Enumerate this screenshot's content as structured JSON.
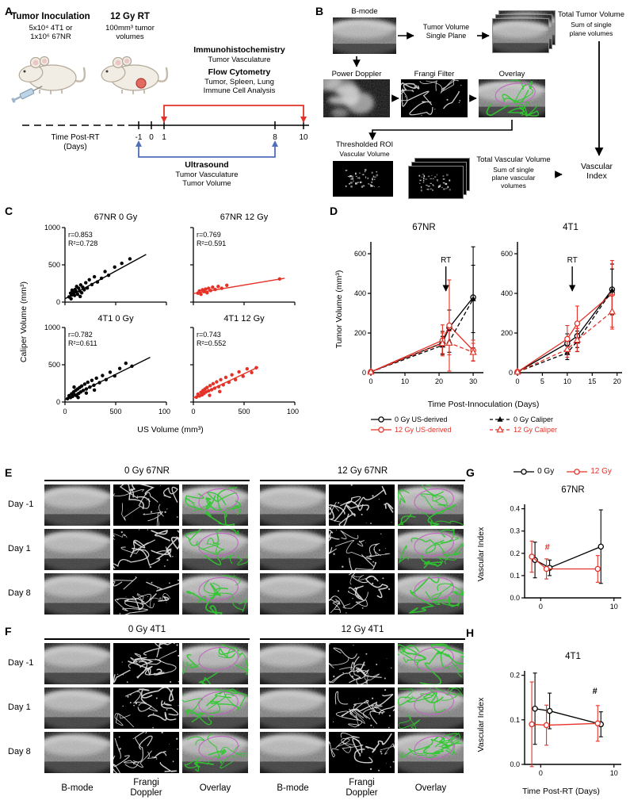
{
  "colors": {
    "red": "#e53228",
    "blue": "#4f6fb8",
    "green": "#2ec92e",
    "magenta": "#c45fc4",
    "black": "#000000"
  },
  "panel_labels": {
    "a": "A",
    "b": "B",
    "c": "C",
    "d": "D",
    "e": "E",
    "f": "F",
    "g": "G",
    "h": "H"
  },
  "panel_a": {
    "inoculation_title": "Tumor Inoculation",
    "inoculation_sub1": "5x10⁴ 4T1 or",
    "inoculation_sub2": "1x10⁶ 67NR",
    "rt_title": "12 Gy RT",
    "rt_sub1": "100mm³ tumor",
    "rt_sub2": "volumes",
    "ihc_title": "Immunohistochemistry",
    "ihc_sub": "Tumor Vasculature",
    "flow_title": "Flow Cytometry",
    "flow_sub1": "Tumor, Spleen, Lung",
    "flow_sub2": "Immune Cell Analysis",
    "time_label1": "Time Post-RT",
    "time_label2": "(Days)",
    "ticks": [
      "-1",
      "0",
      "1",
      "8",
      "10"
    ],
    "us_title": "Ultrasound",
    "us_sub1": "Tumor Vasculature",
    "us_sub2": "Tumor Volume"
  },
  "panel_b": {
    "bmode": "B-mode",
    "tv1": "Tumor Volume",
    "tv2": "Single Plane",
    "total_tumor1": "Total Tumor Volume",
    "total_tumor2": "Sum of single",
    "total_tumor3": "plane volumes",
    "power_doppler": "Power Doppler",
    "frangi": "Frangi Filter",
    "overlay": "Overlay",
    "thresh1": "Thresholded ROI",
    "thresh2": "Vascular Volume",
    "total_vasc1": "Total Vascular Volume",
    "total_vasc2": "Sum of single",
    "total_vasc3": "plane vascular",
    "total_vasc4": "volumes",
    "vi1": "Vascular",
    "vi2": "Index"
  },
  "panel_c": {
    "xlabel": "US Volume (mm³)",
    "ylabel": "Caliper Volume (mm³)"
  },
  "panel_d": {
    "ylabel": "Tumor Volume (mm³)",
    "xlabel": "Time Post-Innoculation (Days)"
  },
  "panel_e": {
    "group1": "0 Gy 67NR",
    "group2": "12 Gy 67NR",
    "rows": [
      "Day -1",
      "Day 1",
      "Day 8"
    ]
  },
  "panel_f": {
    "group1": "0 Gy 4T1",
    "group2": "12 Gy 4T1",
    "rows": [
      "Day -1",
      "Day 1",
      "Day 8"
    ],
    "cols": [
      {
        "l1": "B-mode",
        "l2": ""
      },
      {
        "l1": "Frangi",
        "l2": "Doppler"
      },
      {
        "l1": "Overlay",
        "l2": ""
      },
      {
        "l1": "B-mode",
        "l2": ""
      },
      {
        "l1": "Frangi",
        "l2": "Doppler"
      },
      {
        "l1": "Overlay",
        "l2": ""
      }
    ]
  },
  "panel_g": {
    "ylabel": "Vascular Index"
  },
  "panel_h": {
    "ylabel": "Vascular Index",
    "xlabel": "Time Post-RT (Days)"
  },
  "chart_data": [
    {
      "id": "c_67nr_0gy",
      "type": "scatter",
      "title": "67NR 0 Gy",
      "color": "#000000",
      "r_label": "r=0.853",
      "r2_label": "R²=0.728",
      "xlim": [
        0,
        1000
      ],
      "ylim": [
        0,
        1000
      ],
      "xticks": [
        0,
        500,
        1000
      ],
      "yticks": [
        0,
        500,
        1000
      ],
      "show_xlabels": false,
      "show_ylabels": true,
      "points": [
        [
          40,
          70
        ],
        [
          55,
          120
        ],
        [
          65,
          95
        ],
        [
          70,
          160
        ],
        [
          85,
          130
        ],
        [
          95,
          90
        ],
        [
          100,
          170
        ],
        [
          110,
          140
        ],
        [
          115,
          210
        ],
        [
          125,
          105
        ],
        [
          135,
          185
        ],
        [
          145,
          150
        ],
        [
          155,
          230
        ],
        [
          165,
          125
        ],
        [
          175,
          200
        ],
        [
          190,
          165
        ],
        [
          205,
          260
        ],
        [
          220,
          190
        ],
        [
          240,
          300
        ],
        [
          265,
          235
        ],
        [
          290,
          340
        ],
        [
          320,
          270
        ],
        [
          360,
          320
        ],
        [
          395,
          410
        ],
        [
          430,
          360
        ],
        [
          490,
          470
        ],
        [
          560,
          520
        ],
        [
          640,
          580
        ],
        [
          60,
          45
        ],
        [
          150,
          75
        ]
      ],
      "fit": [
        [
          0,
          45
        ],
        [
          800,
          640
        ]
      ]
    },
    {
      "id": "c_67nr_12gy",
      "type": "scatter",
      "title": "67NR 12 Gy",
      "color": "#e53228",
      "r_label": "r=0.769",
      "r2_label": "R²=0.591",
      "xlim": [
        0,
        1000
      ],
      "ylim": [
        0,
        1000
      ],
      "xticks": [
        0,
        500,
        1000
      ],
      "yticks": [
        0,
        500,
        1000
      ],
      "show_xlabels": false,
      "show_ylabels": false,
      "points": [
        [
          45,
          120
        ],
        [
          60,
          150
        ],
        [
          75,
          105
        ],
        [
          90,
          165
        ],
        [
          105,
          140
        ],
        [
          120,
          175
        ],
        [
          135,
          125
        ],
        [
          150,
          185
        ],
        [
          170,
          155
        ],
        [
          190,
          200
        ],
        [
          215,
          170
        ],
        [
          245,
          210
        ],
        [
          280,
          185
        ],
        [
          330,
          225
        ],
        [
          850,
          310
        ]
      ],
      "fit": [
        [
          0,
          115
        ],
        [
          900,
          320
        ]
      ]
    },
    {
      "id": "c_4t1_0gy",
      "type": "scatter",
      "title": "4T1 0 Gy",
      "color": "#000000",
      "r_label": "r=0.782",
      "r2_label": "R²=0.611",
      "xlim": [
        0,
        1000
      ],
      "ylim": [
        0,
        1000
      ],
      "xticks": [
        0,
        500,
        1000
      ],
      "yticks": [
        0,
        500,
        1000
      ],
      "show_xlabels": true,
      "show_ylabels": true,
      "points": [
        [
          25,
          45
        ],
        [
          40,
          85
        ],
        [
          55,
          60
        ],
        [
          65,
          110
        ],
        [
          75,
          75
        ],
        [
          85,
          135
        ],
        [
          95,
          95
        ],
        [
          105,
          155
        ],
        [
          115,
          85
        ],
        [
          125,
          175
        ],
        [
          135,
          115
        ],
        [
          145,
          195
        ],
        [
          155,
          135
        ],
        [
          165,
          215
        ],
        [
          180,
          155
        ],
        [
          195,
          240
        ],
        [
          210,
          175
        ],
        [
          225,
          265
        ],
        [
          245,
          200
        ],
        [
          265,
          290
        ],
        [
          285,
          225
        ],
        [
          310,
          320
        ],
        [
          340,
          260
        ],
        [
          370,
          355
        ],
        [
          405,
          300
        ],
        [
          445,
          400
        ],
        [
          490,
          350
        ],
        [
          540,
          450
        ],
        [
          600,
          520
        ],
        [
          660,
          480
        ],
        [
          130,
          60
        ],
        [
          210,
          120
        ],
        [
          290,
          160
        ],
        [
          90,
          200
        ]
      ],
      "fit": [
        [
          0,
          35
        ],
        [
          840,
          600
        ]
      ]
    },
    {
      "id": "c_4t1_12gy",
      "type": "scatter",
      "title": "4T1 12 Gy",
      "color": "#e53228",
      "r_label": "r=0.743",
      "r2_label": "R²=0.552",
      "xlim": [
        0,
        1000
      ],
      "ylim": [
        0,
        1000
      ],
      "xticks": [
        0,
        500,
        1000
      ],
      "yticks": [
        0,
        500,
        1000
      ],
      "show_xlabels": true,
      "show_ylabels": false,
      "points": [
        [
          30,
          65
        ],
        [
          45,
          105
        ],
        [
          60,
          80
        ],
        [
          75,
          130
        ],
        [
          85,
          95
        ],
        [
          95,
          155
        ],
        [
          105,
          115
        ],
        [
          115,
          175
        ],
        [
          125,
          135
        ],
        [
          135,
          195
        ],
        [
          150,
          150
        ],
        [
          165,
          220
        ],
        [
          180,
          165
        ],
        [
          195,
          245
        ],
        [
          210,
          185
        ],
        [
          230,
          270
        ],
        [
          250,
          205
        ],
        [
          270,
          300
        ],
        [
          295,
          230
        ],
        [
          320,
          330
        ],
        [
          350,
          265
        ],
        [
          380,
          365
        ],
        [
          415,
          300
        ],
        [
          450,
          405
        ],
        [
          490,
          345
        ],
        [
          530,
          445
        ],
        [
          575,
          395
        ],
        [
          620,
          460
        ],
        [
          160,
          90
        ],
        [
          260,
          140
        ]
      ],
      "fit": [
        [
          0,
          55
        ],
        [
          640,
          470
        ]
      ]
    },
    {
      "id": "d_67nr",
      "type": "line",
      "title": "67NR",
      "xlim": [
        0,
        33
      ],
      "ylim": [
        0,
        660
      ],
      "xticks": [
        0,
        10,
        20,
        30
      ],
      "yticks": [
        0,
        200,
        400,
        600
      ],
      "rt": {
        "x": 22,
        "label": "RT"
      },
      "series": [
        {
          "name": "0 Gy US-derived",
          "color": "#000000",
          "dash": false,
          "marker": "co",
          "x": [
            0,
            21,
            23,
            30
          ],
          "y": [
            4,
            150,
            228,
            380
          ],
          "err": [
            2,
            58,
            88,
            255
          ]
        },
        {
          "name": "12 Gy US-derived",
          "color": "#e53228",
          "dash": false,
          "marker": "co",
          "x": [
            0,
            21,
            23,
            30
          ],
          "y": [
            4,
            163,
            238,
            112
          ],
          "err": [
            2,
            78,
            230,
            52
          ]
        },
        {
          "name": "0 Gy Caliper",
          "color": "#000000",
          "dash": true,
          "marker": "t",
          "x": [
            0,
            21,
            23,
            30
          ],
          "y": [
            4,
            138,
            158,
            372
          ],
          "err": [
            2,
            45,
            55,
            170
          ]
        },
        {
          "name": "12 Gy Caliper",
          "color": "#e53228",
          "dash": true,
          "marker": "to",
          "x": [
            0,
            21,
            23,
            30
          ],
          "y": [
            4,
            148,
            150,
            103
          ],
          "err": [
            2,
            52,
            60,
            45
          ]
        }
      ],
      "legend_order": [
        0,
        2,
        1,
        3
      ]
    },
    {
      "id": "d_4t1",
      "type": "line",
      "title": "4T1",
      "xlim": [
        0,
        21
      ],
      "ylim": [
        0,
        660
      ],
      "xticks": [
        0,
        5,
        10,
        15,
        20
      ],
      "yticks": [
        0,
        200,
        400,
        600
      ],
      "rt": {
        "x": 11,
        "label": "RT"
      },
      "series": [
        {
          "name": "0 Gy US-derived",
          "color": "#000000",
          "dash": false,
          "marker": "co",
          "x": [
            0,
            10,
            12,
            19
          ],
          "y": [
            4,
            148,
            185,
            420
          ],
          "err": [
            2,
            48,
            58,
            128
          ]
        },
        {
          "name": "12 Gy US-derived",
          "color": "#e53228",
          "dash": false,
          "marker": "co",
          "x": [
            0,
            10,
            12,
            19
          ],
          "y": [
            4,
            170,
            248,
            398
          ],
          "err": [
            2,
            68,
            88,
            168
          ]
        },
        {
          "name": "0 Gy Caliper",
          "color": "#000000",
          "dash": true,
          "marker": "t",
          "x": [
            0,
            10,
            12,
            19
          ],
          "y": [
            4,
            100,
            158,
            415
          ],
          "err": [
            2,
            34,
            52,
            108
          ]
        },
        {
          "name": "12 Gy Caliper",
          "color": "#e53228",
          "dash": true,
          "marker": "to",
          "x": [
            0,
            10,
            12,
            19
          ],
          "y": [
            4,
            118,
            165,
            308
          ],
          "err": [
            2,
            40,
            58,
            88
          ]
        }
      ]
    },
    {
      "id": "g_67nr",
      "type": "line",
      "title": "67NR",
      "xlim": [
        -2.2,
        11
      ],
      "ylim": [
        0,
        0.42
      ],
      "xticks": [
        0,
        10
      ],
      "yticks": [
        0,
        0.1,
        0.2,
        0.3,
        0.4
      ],
      "ytick_labels": [
        "0.0",
        "0.1",
        "0.2",
        "0.3",
        "0.4"
      ],
      "hash": {
        "x": 0.9,
        "y": 0.215,
        "label": "#",
        "color": "#e53228"
      },
      "series": [
        {
          "name": "0 Gy",
          "color": "#000000",
          "dash": false,
          "marker": "co",
          "x": [
            -1,
            1,
            8
          ],
          "y": [
            0.17,
            0.135,
            0.23
          ],
          "err": [
            0.08,
            0.035,
            0.165
          ],
          "xoff": 2
        },
        {
          "name": "12 Gy",
          "color": "#e53228",
          "dash": false,
          "marker": "co",
          "x": [
            -1,
            1,
            8
          ],
          "y": [
            0.185,
            0.13,
            0.13
          ],
          "err": [
            0.07,
            0.045,
            0.06
          ],
          "xoff": -2
        }
      ]
    },
    {
      "id": "h_4t1",
      "type": "line",
      "title": "4T1",
      "xlim": [
        -2.2,
        11
      ],
      "ylim": [
        0,
        0.21
      ],
      "xticks": [
        0,
        10
      ],
      "yticks": [
        0,
        0.1,
        0.2
      ],
      "ytick_labels": [
        "0.0",
        "0.1",
        "0.2"
      ],
      "hash": {
        "x": 7.4,
        "y": 0.158,
        "label": "#",
        "color": "#000000"
      },
      "series": [
        {
          "name": "0 Gy",
          "color": "#000000",
          "dash": false,
          "marker": "co",
          "x": [
            -1,
            1,
            8
          ],
          "y": [
            0.125,
            0.12,
            0.09
          ],
          "err": [
            0.08,
            0.04,
            0.028
          ],
          "xoff": 2
        },
        {
          "name": "12 Gy",
          "color": "#e53228",
          "dash": false,
          "marker": "co",
          "x": [
            -1,
            1,
            8
          ],
          "y": [
            0.09,
            0.088,
            0.092
          ],
          "err": [
            0.095,
            0.045,
            0.04
          ],
          "xoff": -2
        }
      ]
    }
  ]
}
